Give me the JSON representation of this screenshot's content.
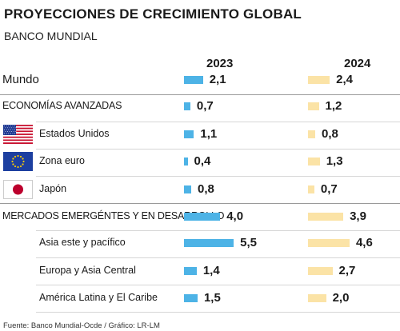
{
  "title": "PROYECCIONES DE CRECIMIENTO GLOBAL",
  "subtitle": "BANCO MUNDIAL",
  "source": "Fuente: Banco Mundial-Ocde / Gráfico: LR-LM",
  "colors": {
    "bar_2023": "#4db3e6",
    "bar_2024": "#fbe3a6"
  },
  "chart_data": {
    "type": "bar",
    "orientation": "horizontal",
    "title": "PROYECCIONES DE CRECIMIENTO GLOBAL",
    "subtitle": "BANCO MUNDIAL",
    "series": [
      {
        "name": "2023",
        "values": [
          2.1,
          0.7,
          1.1,
          0.4,
          0.8,
          4.0,
          5.5,
          1.4,
          1.5
        ]
      },
      {
        "name": "2024",
        "values": [
          2.4,
          1.2,
          0.8,
          1.3,
          0.7,
          3.9,
          4.6,
          2.7,
          2.0
        ]
      }
    ],
    "categories": [
      "Mundo",
      "ECONOMÍAS AVANZADAS",
      "Estados Unidos",
      "Zona euro",
      "Japón",
      "MERCADOS EMERGÉNTES Y EN DESARROLLO",
      "Asia este y pacífico",
      "Europa y Asia Central",
      "América Latina y El Caribe"
    ],
    "value_labels_2023": [
      "2,1",
      "0,7",
      "1,1",
      "0,4",
      "0,8",
      "4,0",
      "5,5",
      "1,4",
      "1,5"
    ],
    "value_labels_2024": [
      "2,4",
      "1,2",
      "0,8",
      "1,3",
      "0,7",
      "3,9",
      "4,6",
      "2,7",
      "2,0"
    ],
    "flags": [
      null,
      null,
      "us-flag-icon",
      "eu-flag-icon",
      "japan-flag-icon",
      null,
      null,
      null,
      null
    ]
  }
}
